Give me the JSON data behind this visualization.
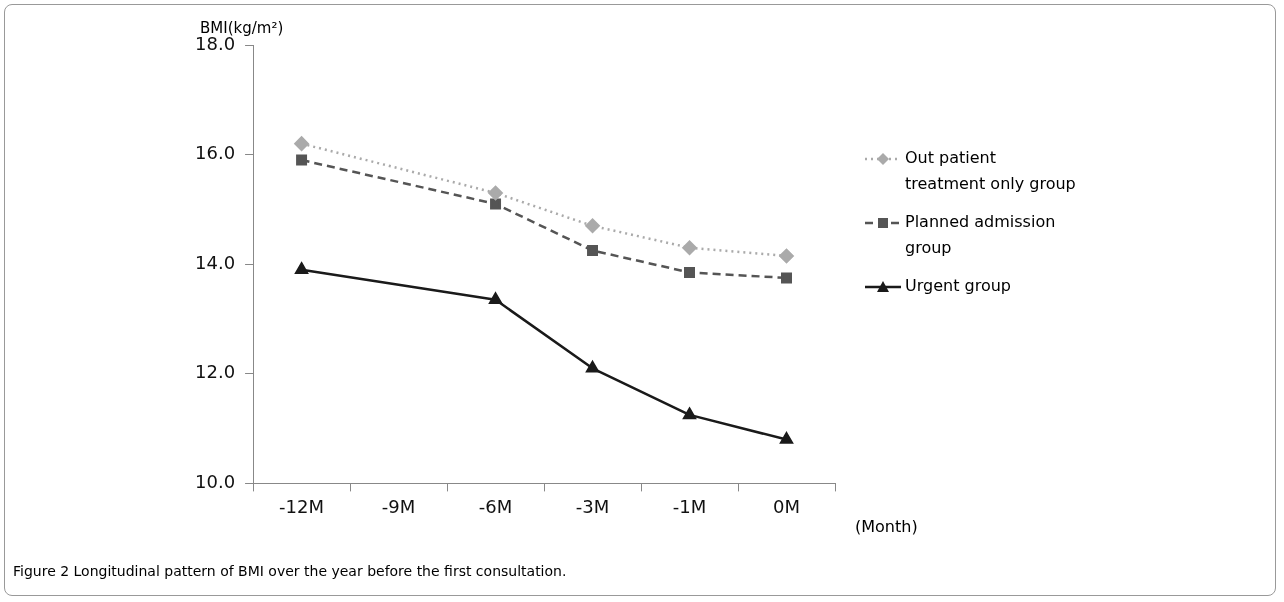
{
  "chart_data": {
    "type": "line",
    "ylabel": "BMI(kg/m²)",
    "xlabel": "(Month)",
    "annotations": [
      "Figure 2 Longitudinal pattern of BMI over the year before the first consultation."
    ],
    "categories": [
      "-12M",
      "-9M",
      "-6M",
      "-3M",
      "-1M",
      "0M"
    ],
    "series": [
      {
        "name": "Out patient treatment only group",
        "color": "#aaaaaa",
        "marker": "diamond",
        "line_style": "dotted",
        "values": [
          16.2,
          null,
          15.3,
          14.7,
          14.3,
          14.15
        ]
      },
      {
        "name": "Planned admission group",
        "color": "#555555",
        "marker": "square",
        "line_style": "dashed",
        "values": [
          15.9,
          null,
          15.1,
          14.25,
          13.85,
          13.75
        ]
      },
      {
        "name": "Urgent group",
        "color": "#1a1a1a",
        "marker": "triangle",
        "line_style": "solid",
        "values": [
          13.9,
          null,
          13.35,
          12.1,
          11.25,
          10.8
        ]
      }
    ],
    "ylim": [
      10,
      18
    ],
    "yticks": [
      {
        "value": 10,
        "label": "10.0"
      },
      {
        "value": 12,
        "label": "12.0"
      },
      {
        "value": 14,
        "label": "14.0"
      },
      {
        "value": 16,
        "label": "16.0"
      },
      {
        "value": 18,
        "label": "18.0"
      }
    ],
    "grid": false,
    "legend": "right"
  }
}
